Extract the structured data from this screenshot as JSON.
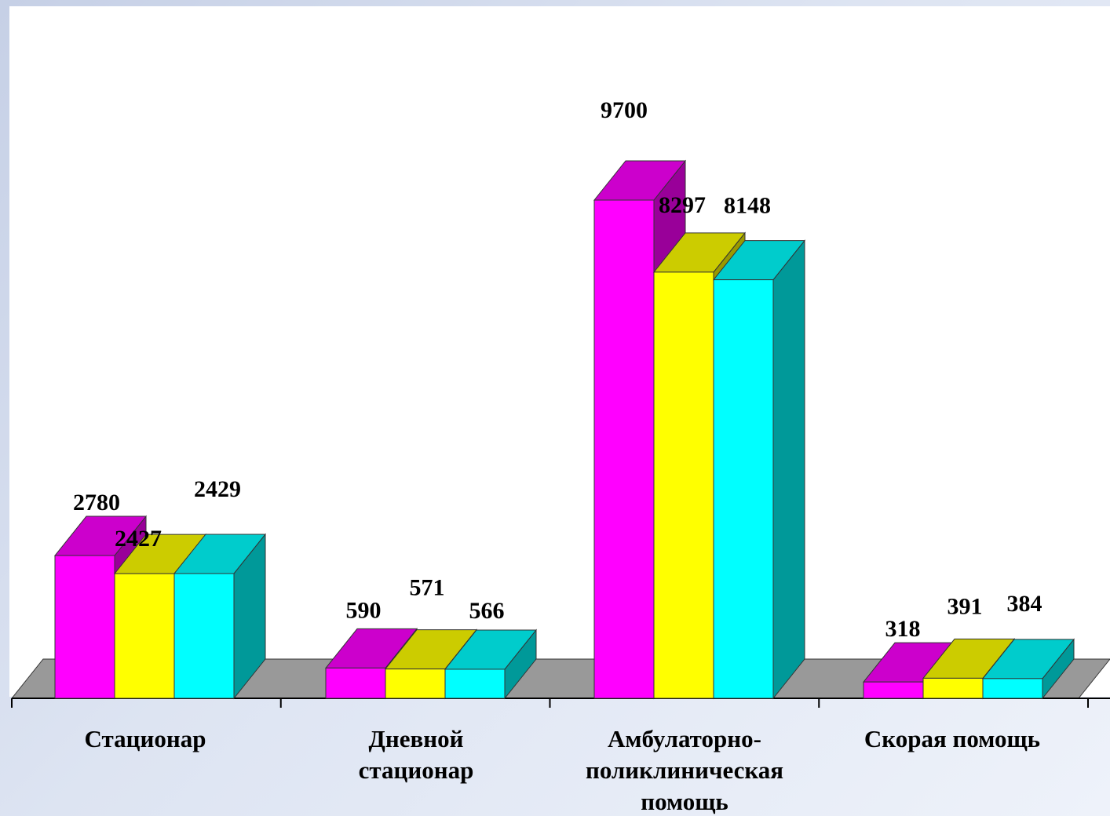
{
  "chart_data": {
    "type": "bar",
    "title": "",
    "xlabel": "",
    "ylabel": "",
    "categories": [
      "Стационар",
      "Дневной стационар",
      "Амбулаторно-поликлиническая помощь",
      "Скорая помощь"
    ],
    "category_lines": [
      [
        "Стационар"
      ],
      [
        "Дневной",
        "стационар"
      ],
      [
        "Амбулаторно-",
        "поликлиническая",
        "помощь"
      ],
      [
        "Скорая помощь"
      ]
    ],
    "series": [
      {
        "values": [
          2780,
          590,
          9700,
          318
        ]
      },
      {
        "values": [
          2427,
          571,
          8297,
          391
        ]
      },
      {
        "values": [
          2429,
          566,
          8148,
          384
        ]
      }
    ],
    "value_labels": [
      [
        "2780",
        "590",
        "9700",
        "318"
      ],
      [
        "2427",
        "571",
        "8297",
        "391"
      ],
      [
        "2429",
        "566",
        "8148",
        "384"
      ]
    ],
    "ylim": [
      0,
      9700
    ],
    "grid": false,
    "legend": "none",
    "colors": {
      "series": [
        "#ff00ff",
        "#ffff00",
        "#00ffff"
      ],
      "top": [
        "#cc00cc",
        "#cccc00",
        "#00cccc"
      ],
      "side": [
        "#990099",
        "#999900",
        "#009999"
      ],
      "floor": "#999999"
    }
  }
}
